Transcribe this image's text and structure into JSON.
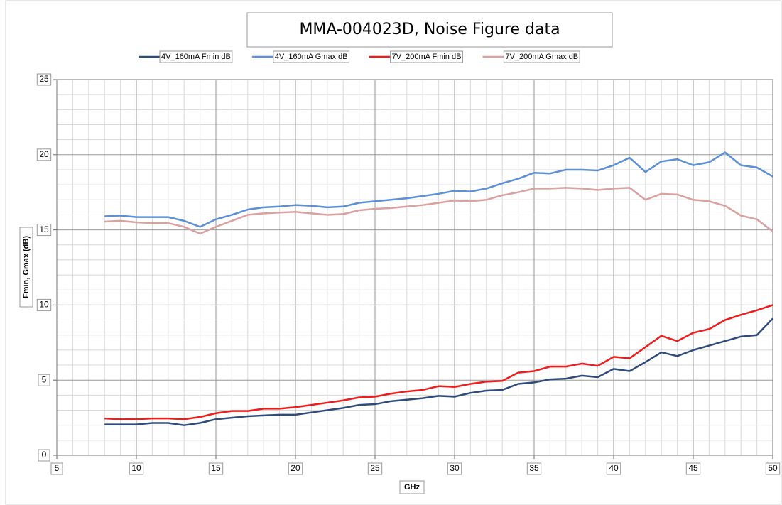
{
  "chart_data": {
    "type": "line",
    "title": "MMA-004023D, Noise Figure data",
    "x_label": "GHz",
    "y_label": "Fmin, Gmax (dB)",
    "x": [
      8,
      9,
      10,
      11,
      12,
      13,
      14,
      15,
      16,
      17,
      18,
      19,
      20,
      21,
      22,
      23,
      24,
      25,
      26,
      27,
      28,
      29,
      30,
      31,
      32,
      33,
      34,
      35,
      36,
      37,
      38,
      39,
      40,
      41,
      42,
      43,
      44,
      45,
      46,
      47,
      48,
      49,
      50
    ],
    "series": [
      {
        "name": "4V_160mA Fmin dB",
        "color": "#2f4b7c",
        "values": [
          2.05,
          2.05,
          2.05,
          2.15,
          2.15,
          2.0,
          2.15,
          2.4,
          2.5,
          2.6,
          2.65,
          2.7,
          2.7,
          2.85,
          3.0,
          3.15,
          3.35,
          3.4,
          3.6,
          3.7,
          3.8,
          3.95,
          3.9,
          4.15,
          4.3,
          4.35,
          4.75,
          4.85,
          5.05,
          5.1,
          5.3,
          5.2,
          5.75,
          5.6,
          6.2,
          6.85,
          6.6,
          7.0,
          7.3,
          7.6,
          7.9,
          8.0,
          9.1
        ]
      },
      {
        "name": "4V_160mA Gmax dB",
        "color": "#5b8fd8",
        "values": [
          15.9,
          15.95,
          15.85,
          15.85,
          15.85,
          15.6,
          15.2,
          15.7,
          16.0,
          16.35,
          16.5,
          16.55,
          16.65,
          16.6,
          16.5,
          16.55,
          16.8,
          16.9,
          17.0,
          17.1,
          17.25,
          17.4,
          17.6,
          17.55,
          17.75,
          18.1,
          18.4,
          18.8,
          18.75,
          19.0,
          19.0,
          18.95,
          19.3,
          19.8,
          18.85,
          19.55,
          19.7,
          19.3,
          19.5,
          20.15,
          19.3,
          19.15,
          18.55
        ]
      },
      {
        "name": "7V_200mA Fmin dB",
        "color": "#f01c1c",
        "values": [
          2.45,
          2.4,
          2.4,
          2.45,
          2.45,
          2.4,
          2.55,
          2.8,
          2.95,
          2.95,
          3.1,
          3.1,
          3.2,
          3.35,
          3.5,
          3.65,
          3.85,
          3.9,
          4.1,
          4.25,
          4.35,
          4.6,
          4.55,
          4.75,
          4.9,
          4.95,
          5.5,
          5.6,
          5.9,
          5.9,
          6.1,
          5.95,
          6.55,
          6.45,
          7.2,
          7.95,
          7.6,
          8.15,
          8.4,
          9.0,
          9.35,
          9.65,
          10.0
        ]
      },
      {
        "name": "7V_200mA Gmax dB",
        "color": "#dba0a0",
        "values": [
          15.55,
          15.6,
          15.5,
          15.45,
          15.45,
          15.2,
          14.75,
          15.2,
          15.6,
          16.0,
          16.1,
          16.15,
          16.2,
          16.1,
          16.0,
          16.05,
          16.3,
          16.4,
          16.45,
          16.55,
          16.65,
          16.8,
          16.95,
          16.9,
          17.0,
          17.3,
          17.5,
          17.75,
          17.75,
          17.8,
          17.75,
          17.65,
          17.75,
          17.8,
          17.0,
          17.4,
          17.35,
          17.0,
          16.9,
          16.6,
          15.95,
          15.7,
          14.9
        ]
      }
    ],
    "xlim": [
      5,
      50
    ],
    "xticks": [
      5,
      10,
      15,
      20,
      25,
      30,
      35,
      40,
      45,
      50
    ],
    "ylim": [
      0,
      25
    ],
    "yticks": [
      0,
      5,
      10,
      15,
      20,
      25
    ],
    "grid": true,
    "minor_grid": true,
    "legend": "top"
  }
}
